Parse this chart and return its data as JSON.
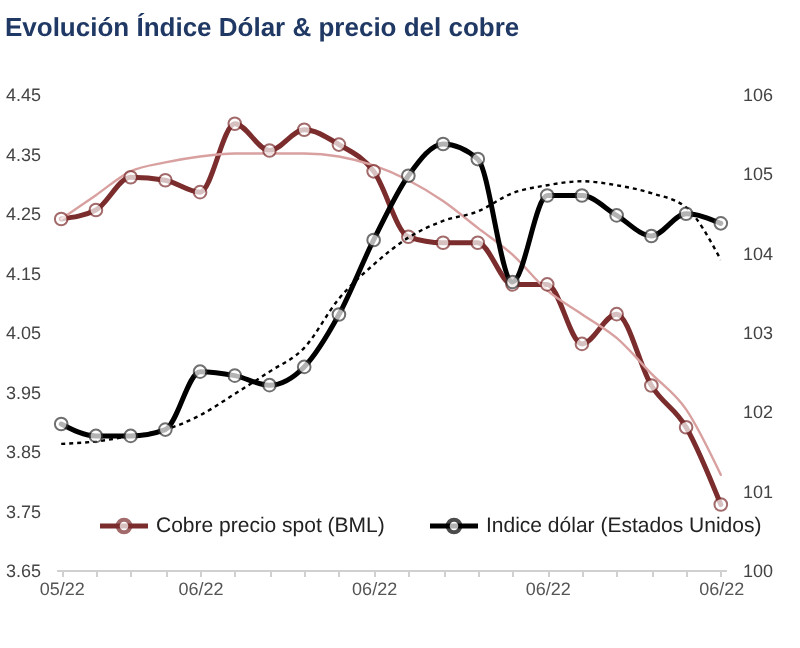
{
  "chart_data": {
    "type": "line",
    "title": "Evolución Índice Dólar & precio del cobre",
    "categories": [
      "05/22",
      null,
      null,
      null,
      "06/22",
      null,
      null,
      null,
      null,
      "06/22",
      null,
      null,
      null,
      null,
      "06/22",
      null,
      null,
      null,
      null,
      "06/22"
    ],
    "series": [
      {
        "name": "Cobre precio spot (BML)",
        "color": "#7b2c2c",
        "values": [
          4.24,
          4.255,
          4.31,
          4.305,
          4.285,
          4.4,
          4.355,
          4.39,
          4.365,
          4.32,
          4.21,
          4.2,
          4.2,
          4.13,
          4.13,
          4.03,
          4.08,
          3.96,
          3.89,
          3.76
        ]
      },
      {
        "name": "Indice dólar (Estados Unidos)",
        "color": "#000000",
        "axis": "y2",
        "values": [
          101.84,
          101.69,
          101.69,
          101.77,
          102.5,
          102.45,
          102.33,
          102.56,
          103.22,
          104.16,
          104.97,
          105.37,
          105.18,
          103.63,
          104.72,
          104.72,
          104.47,
          104.21,
          104.49,
          104.37
        ]
      },
      {
        "type": "line",
        "color": "#d9a0a0",
        "marker": "none",
        "values": [
          4.24,
          4.28,
          4.32,
          4.335,
          4.345,
          4.35,
          4.35,
          4.35,
          4.345,
          4.33,
          4.305,
          4.27,
          4.225,
          4.18,
          4.12,
          4.08,
          4.04,
          3.98,
          3.92,
          3.81
        ]
      },
      {
        "type": "line",
        "color": "#000000",
        "axis": "y2",
        "marker": "none",
        "line_style": "dotted",
        "values": [
          101.59,
          101.62,
          101.69,
          101.77,
          101.95,
          102.22,
          102.5,
          102.8,
          103.42,
          103.85,
          104.19,
          104.4,
          104.52,
          104.75,
          104.85,
          104.9,
          104.85,
          104.75,
          104.57,
          103.91
        ]
      }
    ],
    "ylim": [
      3.65,
      4.45
    ],
    "yticks": [
      3.65,
      3.75,
      3.85,
      3.95,
      4.05,
      4.15,
      4.25,
      4.35,
      4.45
    ],
    "y2lim": [
      100,
      106
    ],
    "y2ticks": [
      100,
      101,
      102,
      103,
      104,
      105,
      106
    ],
    "marker": "circle",
    "line_style": "solid",
    "grid": false,
    "legend": "bottom"
  }
}
